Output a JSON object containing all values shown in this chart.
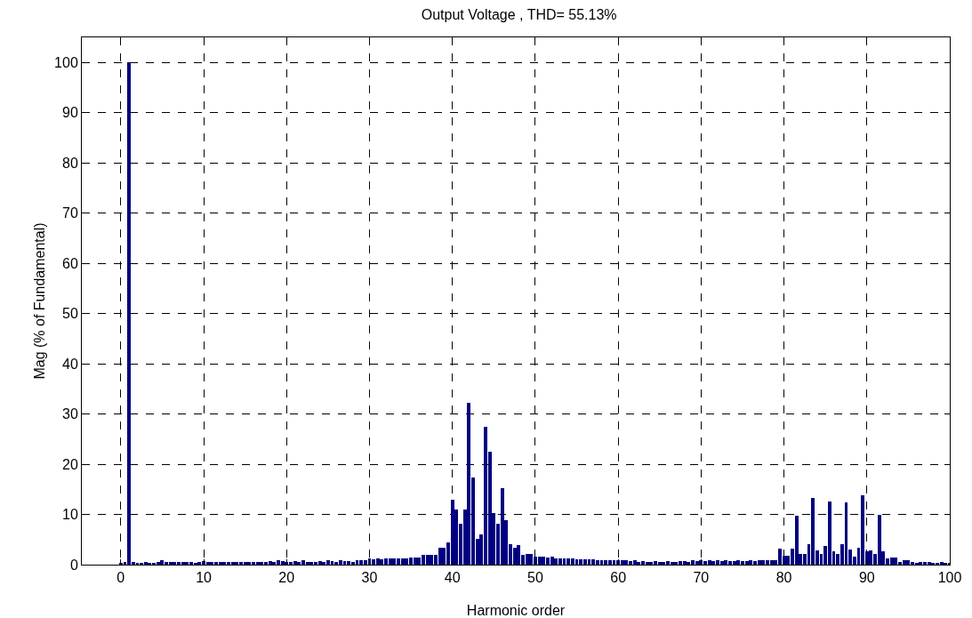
{
  "chart_data": {
    "type": "bar",
    "title": "Output Voltage , THD= 55.13%",
    "xlabel": "Harmonic order",
    "ylabel": "Mag (% of Fundamental)",
    "x": [
      0,
      0.5,
      1,
      1.5,
      2,
      2.5,
      3,
      3.5,
      4,
      4.5,
      5,
      5.5,
      6,
      6.5,
      7,
      7.5,
      8,
      8.5,
      9,
      9.5,
      10,
      10.5,
      11,
      11.5,
      12,
      12.5,
      13,
      13.5,
      14,
      14.5,
      15,
      15.5,
      16,
      16.5,
      17,
      17.5,
      18,
      18.5,
      19,
      19.5,
      20,
      20.5,
      21,
      21.5,
      22,
      22.5,
      23,
      23.5,
      24,
      24.5,
      25,
      25.5,
      26,
      26.5,
      27,
      27.5,
      28,
      28.5,
      29,
      29.5,
      30,
      30.5,
      31,
      31.5,
      32,
      32.5,
      33,
      33.5,
      34,
      34.5,
      35,
      35.5,
      36,
      36.5,
      37,
      37.5,
      38,
      38.5,
      39,
      39.5,
      40,
      40.5,
      41,
      41.5,
      42,
      42.5,
      43,
      43.5,
      44,
      44.5,
      45,
      45.5,
      46,
      46.5,
      47,
      47.5,
      48,
      48.5,
      49,
      49.5,
      50,
      50.5,
      51,
      51.5,
      52,
      52.5,
      53,
      53.5,
      54,
      54.5,
      55,
      55.5,
      56,
      56.5,
      57,
      57.5,
      58,
      58.5,
      59,
      59.5,
      60,
      60.5,
      61,
      61.5,
      62,
      62.5,
      63,
      63.5,
      64,
      64.5,
      65,
      65.5,
      66,
      66.5,
      67,
      67.5,
      68,
      68.5,
      69,
      69.5,
      70,
      70.5,
      71,
      71.5,
      72,
      72.5,
      73,
      73.5,
      74,
      74.5,
      75,
      75.5,
      76,
      76.5,
      77,
      77.5,
      78,
      78.5,
      79,
      79.5,
      80,
      80.5,
      81,
      81.5,
      82,
      82.5,
      83,
      83.5,
      84,
      84.5,
      85,
      85.5,
      86,
      86.5,
      87,
      87.5,
      88,
      88.5,
      89,
      89.5,
      90,
      90.5,
      91,
      91.5,
      92,
      92.5,
      93,
      93.5,
      94,
      94.5,
      95,
      95.5,
      96,
      96.5,
      97,
      97.5,
      98,
      98.5,
      99,
      99.5,
      100
    ],
    "series": [
      {
        "color": "#000080",
        "values": [
          0.3,
          0.5,
          100,
          0.5,
          0.3,
          0.4,
          0.5,
          0.3,
          0.4,
          0.5,
          0.8,
          0.6,
          0.5,
          0.6,
          0.6,
          0.5,
          0.5,
          0.5,
          0.4,
          0.6,
          0.7,
          0.6,
          0.5,
          0.6,
          0.6,
          0.5,
          0.6,
          0.5,
          0.6,
          0.6,
          0.5,
          0.6,
          0.6,
          0.5,
          0.5,
          0.6,
          0.7,
          0.5,
          0.8,
          0.7,
          0.5,
          0.6,
          0.7,
          0.6,
          0.8,
          0.6,
          0.6,
          0.5,
          0.7,
          0.6,
          0.8,
          0.7,
          0.6,
          0.9,
          0.7,
          0.7,
          0.6,
          0.9,
          0.9,
          0.8,
          1.2,
          1.0,
          1.2,
          1.1,
          1.2,
          1.2,
          1.3,
          1.3,
          1.2,
          1.3,
          1.4,
          1.4,
          1.4,
          1.9,
          1.9,
          1.9,
          1.9,
          3.4,
          3.4,
          4.5,
          13,
          11,
          8.1,
          11,
          32.2,
          17.4,
          5.1,
          6.1,
          27.5,
          22.4,
          10.3,
          8.1,
          15.3,
          8.8,
          4.1,
          3.4,
          3.9,
          1.9,
          2.2,
          2.2,
          1.6,
          1.6,
          1.6,
          1.5,
          1.6,
          1.3,
          1.3,
          1.3,
          1.2,
          1.2,
          1.0,
          1.0,
          1.1,
          1.0,
          1.0,
          0.9,
          0.9,
          0.9,
          0.8,
          0.9,
          0.8,
          0.9,
          0.8,
          0.7,
          0.8,
          0.6,
          0.7,
          0.6,
          0.6,
          0.7,
          0.6,
          0.6,
          0.7,
          0.6,
          0.6,
          0.7,
          0.7,
          0.6,
          0.8,
          0.7,
          0.8,
          0.7,
          0.8,
          0.7,
          0.8,
          0.7,
          0.8,
          0.7,
          0.7,
          0.8,
          0.7,
          0.7,
          0.8,
          0.7,
          0.8,
          0.9,
          0.8,
          0.9,
          0.8,
          3.1,
          1.8,
          1.8,
          3.1,
          9.7,
          2.2,
          2.2,
          4.0,
          13.2,
          2.8,
          2.1,
          3.7,
          12.6,
          2.7,
          2.2,
          4.0,
          12.4,
          3.0,
          1.6,
          3.4,
          13.9,
          2.7,
          2.8,
          2.2,
          10,
          2.7,
          1.2,
          1.5,
          1.5,
          0.6,
          0.8,
          0.8,
          0.5,
          0.4,
          0.5,
          0.6,
          0.5,
          0.4,
          0.4,
          0.5,
          0.4,
          0.3
        ]
      }
    ],
    "xlim": [
      -4.7,
      100
    ],
    "xticks": [
      0,
      10,
      20,
      30,
      40,
      50,
      60,
      70,
      80,
      90,
      100
    ],
    "ylim": [
      0,
      105
    ],
    "yticks": [
      0,
      10,
      20,
      30,
      40,
      50,
      60,
      70,
      80,
      90,
      100
    ],
    "grid": true
  }
}
